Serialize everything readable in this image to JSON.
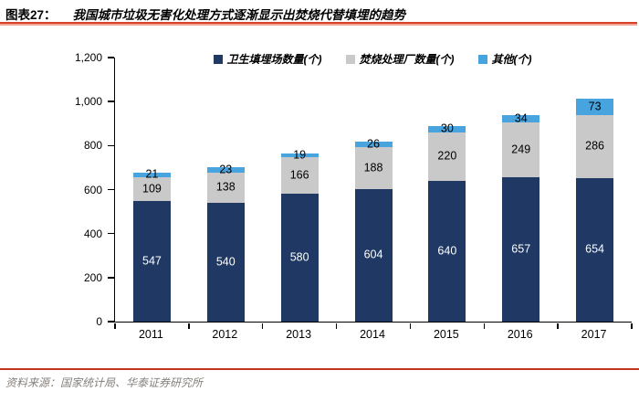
{
  "header": {
    "tag": "图表27：",
    "title": "我国城市垃圾无害化处理方式逐渐显示出焚烧代替填埋的趋势"
  },
  "chart_data": {
    "type": "bar",
    "stacked": true,
    "title": "我国城市垃圾无害化处理方式逐渐显示出焚烧代替填埋的趋势",
    "categories": [
      "2011",
      "2012",
      "2013",
      "2014",
      "2015",
      "2016",
      "2017"
    ],
    "series": [
      {
        "name": "卫生填埋场数量(个)",
        "color": "#1F3864",
        "label_color": "#FFFFFF",
        "values": [
          547,
          540,
          580,
          604,
          640,
          657,
          654
        ]
      },
      {
        "name": "焚烧处理厂数量(个)",
        "color": "#C9C9C9",
        "label_color": "#000000",
        "values": [
          109,
          138,
          166,
          188,
          220,
          249,
          286
        ]
      },
      {
        "name": "其他(个)",
        "color": "#47A4DE",
        "label_color": "#000000",
        "values": [
          21,
          23,
          19,
          26,
          30,
          34,
          73
        ]
      }
    ],
    "xlabel": "",
    "ylabel": "",
    "ylim": [
      0,
      1200
    ],
    "ytick_step": 200,
    "ytick_labels": [
      "0",
      "200",
      "400",
      "600",
      "800",
      "1,000",
      "1,200"
    ],
    "grid": false,
    "data_labels": true,
    "legend_position": "top-center"
  },
  "footer": {
    "source": "资料来源：国家统计局、华泰证券研究所"
  },
  "colors": {
    "title_rule_dark": "#D6432A",
    "title_rule_light": "#F2A493",
    "footer_rule": "#C43422",
    "axis": "#000000",
    "footer_text": "#86807C"
  }
}
